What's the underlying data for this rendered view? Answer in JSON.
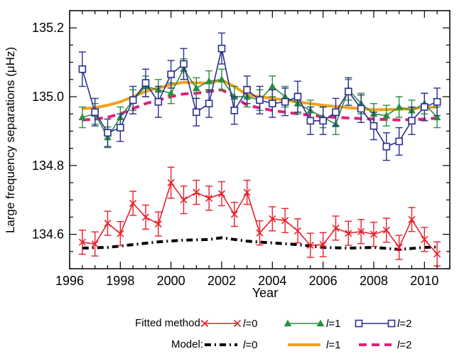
{
  "chart_data": {
    "type": "line",
    "xlabel": "Year",
    "ylabel": "Large frequency separations (μHz)",
    "xlim": [
      1996,
      2011
    ],
    "ylim": [
      134.5,
      135.25
    ],
    "xticks": [
      1996,
      1998,
      2000,
      2002,
      2004,
      2006,
      2008,
      2010
    ],
    "yticks": [
      134.6,
      134.8,
      135.0,
      135.2
    ],
    "ytick_labels": [
      "134.6",
      "134.8",
      "135.0",
      "135.2"
    ],
    "x": [
      1996.5,
      1997.0,
      1997.5,
      1998.0,
      1998.5,
      1999.0,
      1999.5,
      2000.0,
      2000.5,
      2001.0,
      2001.5,
      2002.0,
      2002.5,
      2003.0,
      2003.5,
      2004.0,
      2004.5,
      2005.0,
      2005.5,
      2006.0,
      2006.5,
      2007.0,
      2007.5,
      2008.0,
      2008.5,
      2009.0,
      2009.5,
      2010.0,
      2010.5
    ],
    "fitted_series": [
      {
        "name": "l=0",
        "color": "#e8202a",
        "marker": "x",
        "values": [
          134.577,
          134.572,
          134.632,
          134.602,
          134.69,
          134.65,
          134.63,
          134.75,
          134.7,
          134.722,
          134.705,
          134.718,
          134.658,
          134.722,
          134.604,
          134.645,
          134.64,
          134.61,
          134.568,
          134.57,
          134.618,
          134.603,
          134.608,
          134.6,
          134.612,
          134.562,
          134.643,
          134.585,
          134.543
        ],
        "errors": [
          0.035,
          0.035,
          0.035,
          0.035,
          0.035,
          0.035,
          0.035,
          0.045,
          0.04,
          0.035,
          0.035,
          0.035,
          0.035,
          0.035,
          0.035,
          0.035,
          0.035,
          0.035,
          0.035,
          0.035,
          0.035,
          0.035,
          0.035,
          0.035,
          0.035,
          0.035,
          0.035,
          0.035,
          0.035
        ]
      },
      {
        "name": "l=1",
        "color": "#2a8f3e",
        "marker": "triangle",
        "values": [
          134.94,
          134.95,
          134.882,
          134.94,
          134.99,
          135.03,
          135.02,
          135.01,
          135.08,
          135.025,
          135.045,
          135.05,
          135.0,
          135.0,
          134.99,
          135.03,
          135.0,
          134.98,
          134.96,
          134.94,
          134.92,
          135.02,
          134.98,
          134.95,
          134.945,
          134.97,
          134.96,
          134.98,
          134.94
        ],
        "errors": [
          0.03,
          0.03,
          0.03,
          0.03,
          0.03,
          0.03,
          0.03,
          0.03,
          0.03,
          0.03,
          0.03,
          0.03,
          0.03,
          0.03,
          0.03,
          0.03,
          0.03,
          0.03,
          0.03,
          0.03,
          0.03,
          0.03,
          0.03,
          0.03,
          0.03,
          0.03,
          0.03,
          0.03,
          0.03
        ]
      },
      {
        "name": "l=2",
        "color": "#2a2f8f",
        "marker": "square",
        "values": [
          135.08,
          134.955,
          134.895,
          134.91,
          134.99,
          135.04,
          134.985,
          135.065,
          135.095,
          134.955,
          134.98,
          135.14,
          134.96,
          135.02,
          134.99,
          134.98,
          134.985,
          135.0,
          134.93,
          134.93,
          134.955,
          135.015,
          134.965,
          134.915,
          134.855,
          134.87,
          134.93,
          134.97,
          134.985
        ],
        "errors": [
          0.05,
          0.04,
          0.04,
          0.04,
          0.04,
          0.04,
          0.045,
          0.04,
          0.045,
          0.04,
          0.04,
          0.045,
          0.04,
          0.04,
          0.04,
          0.04,
          0.04,
          0.045,
          0.04,
          0.04,
          0.04,
          0.04,
          0.04,
          0.04,
          0.04,
          0.04,
          0.04,
          0.04,
          0.04
        ]
      }
    ],
    "model_series": [
      {
        "name": "l=0",
        "color": "#000000",
        "style": "dash-dot",
        "x": [
          1996.5,
          1997.5,
          1998.5,
          1999.5,
          2000.5,
          2001.5,
          2002.0,
          2003.0,
          2004.0,
          2005.0,
          2006.0,
          2007.0,
          2008.0,
          2009.0,
          2010.0,
          2010.5
        ],
        "values": [
          134.56,
          134.562,
          134.57,
          134.578,
          134.583,
          134.585,
          134.59,
          134.58,
          134.575,
          134.57,
          134.562,
          134.56,
          134.562,
          134.556,
          134.562,
          134.563
        ]
      },
      {
        "name": "l=1",
        "color": "#f0a11c",
        "style": "solid",
        "x": [
          1996.5,
          1997.0,
          1997.5,
          1998.0,
          1998.5,
          1999.0,
          1999.5,
          2000.0,
          2000.5,
          2001.0,
          2001.5,
          2002.0,
          2002.5,
          2003.0,
          2004.0,
          2005.0,
          2006.0,
          2007.0,
          2008.0,
          2009.0,
          2010.0,
          2010.5
        ],
        "values": [
          134.965,
          134.968,
          134.975,
          134.985,
          135.0,
          135.015,
          135.025,
          135.035,
          135.042,
          135.04,
          135.04,
          135.048,
          135.03,
          135.005,
          134.995,
          134.985,
          134.975,
          134.968,
          134.962,
          134.963,
          134.968,
          134.97
        ]
      },
      {
        "name": "l=2",
        "color": "#e0207a",
        "style": "dashed",
        "x": [
          1996.5,
          1997.0,
          1997.5,
          1998.0,
          1998.5,
          1999.0,
          1999.5,
          2000.0,
          2000.5,
          2001.0,
          2001.5,
          2002.0,
          2002.5,
          2003.0,
          2004.0,
          2005.0,
          2006.0,
          2007.0,
          2008.0,
          2009.0,
          2010.0,
          2010.5
        ],
        "values": [
          134.932,
          134.935,
          134.94,
          134.95,
          134.965,
          134.98,
          134.99,
          135.0,
          135.008,
          135.01,
          135.015,
          135.02,
          135.0,
          134.975,
          134.96,
          134.95,
          134.942,
          134.938,
          134.935,
          134.932,
          134.935,
          134.938
        ]
      }
    ],
    "legend": {
      "fitted_label": "Fitted method:",
      "model_label": "Model:",
      "placement": "bottom"
    }
  }
}
